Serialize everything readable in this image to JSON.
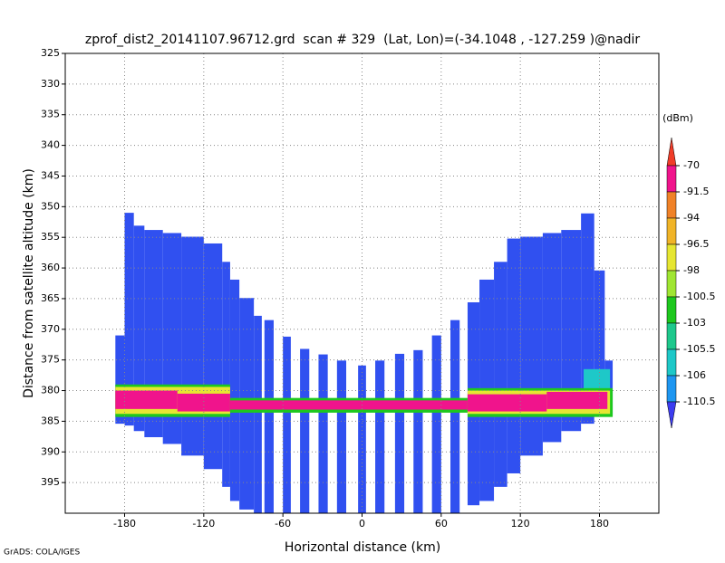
{
  "chart_data": {
    "type": "profile",
    "title": "zprof_dist2_20141107.96712.grd  scan # 329  (Lat, Lon)=(-34.1048 , -127.259 )@nadir",
    "xlabel": "Horizontal distance (km)",
    "ylabel": "Distance from satellite altitude (km)",
    "footer": "GrADS: COLA/IGES",
    "xlim": [
      -225,
      225
    ],
    "ylim": [
      325,
      400
    ],
    "xticks": [
      -180,
      -120,
      -60,
      0,
      60,
      120,
      180
    ],
    "yticks": [
      325,
      330,
      335,
      340,
      345,
      350,
      355,
      360,
      365,
      370,
      375,
      380,
      385,
      390,
      395
    ],
    "grid": true,
    "colorbar": {
      "unit": "(dBm)",
      "levels": [
        -70,
        -91.5,
        -94,
        -96.5,
        -98,
        -100.5,
        -103,
        -105.5,
        -106,
        -110.5
      ],
      "colors": [
        "#f03c28",
        "#f0148c",
        "#f08228",
        "#f0b428",
        "#e6e632",
        "#a0e632",
        "#1ec81e",
        "#1ec88c",
        "#1ec8c8",
        "#1e96f0",
        "#3c3cf0"
      ]
    },
    "cells": [
      {
        "color": "#3050f0",
        "x0": -187,
        "x1": -180,
        "top": 371,
        "bottom": 385.4
      },
      {
        "color": "#3050f0",
        "x0": -180,
        "x1": -173,
        "top": 351,
        "bottom": 385.7
      },
      {
        "color": "#3050f0",
        "x0": -173,
        "x1": -165,
        "top": 353.1,
        "bottom": 386.6
      },
      {
        "color": "#3050f0",
        "x0": -165,
        "x1": -151,
        "top": 353.8,
        "bottom": 387.6
      },
      {
        "color": "#3050f0",
        "x0": -151,
        "x1": -137,
        "top": 354.3,
        "bottom": 388.7
      },
      {
        "color": "#3050f0",
        "x0": -137,
        "x1": -120,
        "top": 354.9,
        "bottom": 390.6
      },
      {
        "color": "#3050f0",
        "x0": -120,
        "x1": -106,
        "top": 356,
        "bottom": 392.8
      },
      {
        "color": "#3050f0",
        "x0": -106,
        "x1": -100,
        "top": 359,
        "bottom": 395.7
      },
      {
        "color": "#3050f0",
        "x0": -100,
        "x1": -93,
        "top": 361.9,
        "bottom": 398
      },
      {
        "color": "#3050f0",
        "x0": -93,
        "x1": -82,
        "top": 364.9,
        "bottom": 399.4
      },
      {
        "color": "#3050f0",
        "x0": -82,
        "x1": -76,
        "top": 367.8,
        "bottom": 400
      },
      {
        "color": "#3050f0",
        "x0": -74,
        "x1": -67,
        "top": 368.5,
        "bottom": 400
      },
      {
        "color": "#3050f0",
        "x0": -60,
        "x1": -54,
        "top": 371.2,
        "bottom": 400
      },
      {
        "color": "#3050f0",
        "x0": -47,
        "x1": -40,
        "top": 373.2,
        "bottom": 400
      },
      {
        "color": "#3050f0",
        "x0": -33,
        "x1": -26,
        "top": 374.1,
        "bottom": 400
      },
      {
        "color": "#3050f0",
        "x0": -19,
        "x1": -12,
        "top": 375.1,
        "bottom": 400
      },
      {
        "color": "#3050f0",
        "x0": -3,
        "x1": 3,
        "top": 375.9,
        "bottom": 400
      },
      {
        "color": "#3050f0",
        "x0": 10,
        "x1": 17,
        "top": 375.1,
        "bottom": 400
      },
      {
        "color": "#3050f0",
        "x0": 25,
        "x1": 32,
        "top": 374,
        "bottom": 400
      },
      {
        "color": "#3050f0",
        "x0": 39,
        "x1": 46,
        "top": 373.4,
        "bottom": 400
      },
      {
        "color": "#3050f0",
        "x0": 53,
        "x1": 60,
        "top": 371,
        "bottom": 400
      },
      {
        "color": "#3050f0",
        "x0": 67,
        "x1": 74,
        "top": 368.5,
        "bottom": 400
      },
      {
        "color": "#3050f0",
        "x0": 80,
        "x1": 89,
        "top": 365.6,
        "bottom": 398.7
      },
      {
        "color": "#3050f0",
        "x0": 89,
        "x1": 100,
        "top": 361.9,
        "bottom": 398
      },
      {
        "color": "#3050f0",
        "x0": 100,
        "x1": 110,
        "top": 359,
        "bottom": 395.7
      },
      {
        "color": "#3050f0",
        "x0": 110,
        "x1": 120,
        "top": 355.2,
        "bottom": 393.5
      },
      {
        "color": "#3050f0",
        "x0": 120,
        "x1": 137,
        "top": 354.9,
        "bottom": 390.6
      },
      {
        "color": "#3050f0",
        "x0": 137,
        "x1": 151,
        "top": 354.3,
        "bottom": 388.4
      },
      {
        "color": "#3050f0",
        "x0": 151,
        "x1": 166,
        "top": 353.8,
        "bottom": 386.6
      },
      {
        "color": "#3050f0",
        "x0": 166,
        "x1": 176,
        "top": 351.1,
        "bottom": 385.4
      },
      {
        "color": "#3050f0",
        "x0": 176,
        "x1": 184,
        "top": 360.4,
        "bottom": 383.2
      },
      {
        "color": "#3050f0",
        "x0": 184,
        "x1": 190,
        "top": 375.1,
        "bottom": 384
      },
      {
        "color": "#1ec8c8",
        "x0": 168,
        "x1": 188,
        "top": 376.5,
        "bottom": 380
      },
      {
        "color": "#1ec81e",
        "x0": -187,
        "x1": -100,
        "top": 379,
        "bottom": 384.3
      },
      {
        "color": "#e6e632",
        "x0": -187,
        "x1": -100,
        "top": 379.4,
        "bottom": 383.8
      },
      {
        "color": "#f0148c",
        "x0": -187,
        "x1": -140,
        "top": 380,
        "bottom": 383
      },
      {
        "color": "#f0148c",
        "x0": -140,
        "x1": -100,
        "top": 380.5,
        "bottom": 383.4
      },
      {
        "color": "#1ec81e",
        "x0": -100,
        "x1": 80,
        "top": 381.2,
        "bottom": 383.6
      },
      {
        "color": "#f0148c",
        "x0": -100,
        "x1": 80,
        "top": 381.6,
        "bottom": 383.1
      },
      {
        "color": "#1ec81e",
        "x0": 80,
        "x1": 190,
        "top": 379.6,
        "bottom": 384.3
      },
      {
        "color": "#e6e632",
        "x0": 80,
        "x1": 188,
        "top": 380,
        "bottom": 383.8
      },
      {
        "color": "#f0148c",
        "x0": 80,
        "x1": 140,
        "top": 380.6,
        "bottom": 383.4
      },
      {
        "color": "#f0148c",
        "x0": 140,
        "x1": 186,
        "top": 380.2,
        "bottom": 383
      }
    ]
  }
}
